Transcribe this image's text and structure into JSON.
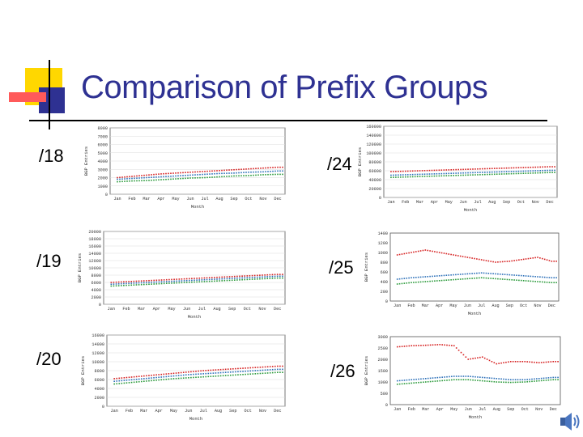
{
  "slide": {
    "title": "Comparison of Prefix Groups",
    "accent_colors": {
      "yellow": "#ffd700",
      "blue": "#2e3192",
      "red": "#ff3b3b",
      "rule": "#000000"
    }
  },
  "panels": [
    {
      "label": "/18",
      "chart_data": {
        "type": "scatter",
        "xlabel": "Month",
        "ylabel": "BGP Entries",
        "yticks": [
          "8000",
          "7000",
          "6000",
          "5000",
          "4000",
          "3000",
          "2000",
          "1000",
          "0"
        ],
        "xticks": [
          "Jan",
          "Feb",
          "Mar",
          "Apr",
          "May",
          "Jun",
          "Jul",
          "Aug",
          "Sep",
          "Oct",
          "Nov",
          "Dec"
        ],
        "ylim": [
          0,
          8000
        ],
        "grid": true,
        "legend": "none",
        "series": [
          {
            "color": "#d62020",
            "x": [
              1,
              2,
              3,
              4,
              5,
              6,
              7,
              8,
              9,
              10,
              11,
              12
            ],
            "y": [
              2000,
              2150,
              2300,
              2450,
              2550,
              2650,
              2750,
              2850,
              2950,
              3050,
              3150,
              3250
            ]
          },
          {
            "color": "#2b6fb8",
            "x": [
              1,
              2,
              3,
              4,
              5,
              6,
              7,
              8,
              9,
              10,
              11,
              12
            ],
            "y": [
              1800,
              1900,
              2000,
              2100,
              2200,
              2300,
              2400,
              2500,
              2550,
              2650,
              2700,
              2800
            ]
          },
          {
            "color": "#2a9a3a",
            "x": [
              1,
              2,
              3,
              4,
              5,
              6,
              7,
              8,
              9,
              10,
              11,
              12
            ],
            "y": [
              1500,
              1600,
              1650,
              1750,
              1850,
              1950,
              2000,
              2100,
              2200,
              2250,
              2350,
              2400
            ]
          }
        ]
      }
    },
    {
      "label": "/24",
      "chart_data": {
        "type": "scatter",
        "xlabel": "Month",
        "ylabel": "BGP Entries",
        "yticks": [
          "160000",
          "140000",
          "120000",
          "100000",
          "80000",
          "60000",
          "40000",
          "20000",
          "0"
        ],
        "xticks": [
          "Jan",
          "Feb",
          "Mar",
          "Apr",
          "May",
          "Jun",
          "Jul",
          "Aug",
          "Sep",
          "Oct",
          "Nov",
          "Dec"
        ],
        "ylim": [
          0,
          160000
        ],
        "grid": true,
        "legend": "none",
        "series": [
          {
            "color": "#d62020",
            "x": [
              1,
              2,
              3,
              4,
              5,
              6,
              7,
              8,
              9,
              10,
              11,
              12
            ],
            "y": [
              58000,
              59000,
              60000,
              61000,
              62000,
              63000,
              64000,
              65000,
              66000,
              67000,
              68000,
              69000
            ]
          },
          {
            "color": "#2b6fb8",
            "x": [
              1,
              2,
              3,
              4,
              5,
              6,
              7,
              8,
              9,
              10,
              11,
              12
            ],
            "y": [
              50000,
              51000,
              52000,
              53000,
              54000,
              55000,
              56000,
              57000,
              58000,
              59000,
              60000,
              61000
            ]
          },
          {
            "color": "#2a9a3a",
            "x": [
              1,
              2,
              3,
              4,
              5,
              6,
              7,
              8,
              9,
              10,
              11,
              12
            ],
            "y": [
              45000,
              46000,
              47000,
              48000,
              49000,
              50000,
              51000,
              52000,
              53000,
              54000,
              55000,
              56000
            ]
          }
        ]
      }
    },
    {
      "label": "/19",
      "chart_data": {
        "type": "scatter",
        "xlabel": "Month",
        "ylabel": "BGP Entries",
        "yticks": [
          "20000",
          "18000",
          "16000",
          "14000",
          "12000",
          "10000",
          "8000",
          "6000",
          "4000",
          "2000",
          "0"
        ],
        "xticks": [
          "Jan",
          "Feb",
          "Mar",
          "Apr",
          "May",
          "Jun",
          "Jul",
          "Aug",
          "Sep",
          "Oct",
          "Nov",
          "Dec"
        ],
        "ylim": [
          0,
          20000
        ],
        "grid": true,
        "legend": "none",
        "series": [
          {
            "color": "#d62020",
            "x": [
              1,
              2,
              3,
              4,
              5,
              6,
              7,
              8,
              9,
              10,
              11,
              12
            ],
            "y": [
              6000,
              6200,
              6400,
              6600,
              6800,
              7000,
              7200,
              7400,
              7600,
              7800,
              8000,
              8200
            ]
          },
          {
            "color": "#2b6fb8",
            "x": [
              1,
              2,
              3,
              4,
              5,
              6,
              7,
              8,
              9,
              10,
              11,
              12
            ],
            "y": [
              5500,
              5700,
              5900,
              6100,
              6300,
              6500,
              6700,
              6900,
              7100,
              7300,
              7500,
              7700
            ]
          },
          {
            "color": "#2a9a3a",
            "x": [
              1,
              2,
              3,
              4,
              5,
              6,
              7,
              8,
              9,
              10,
              11,
              12
            ],
            "y": [
              5000,
              5200,
              5400,
              5600,
              5800,
              6000,
              6200,
              6400,
              6600,
              6800,
              7000,
              7200
            ]
          }
        ]
      }
    },
    {
      "label": "/25",
      "chart_data": {
        "type": "scatter",
        "xlabel": "Month",
        "ylabel": "BGP Entries",
        "yticks": [
          "1400",
          "1200",
          "1000",
          "800",
          "600",
          "400",
          "200",
          "0"
        ],
        "xticks": [
          "Jan",
          "Feb",
          "Mar",
          "Apr",
          "May",
          "Jun",
          "Jul",
          "Aug",
          "Sep",
          "Oct",
          "Nov",
          "Dec"
        ],
        "ylim": [
          0,
          1400
        ],
        "grid": false,
        "legend": "none",
        "series": [
          {
            "color": "#d62020",
            "x": [
              1,
              2,
              3,
              4,
              5,
              6,
              7,
              8,
              9,
              10,
              11,
              12
            ],
            "y": [
              950,
              1000,
              1050,
              1000,
              950,
              900,
              850,
              800,
              820,
              860,
              900,
              820
            ]
          },
          {
            "color": "#2b6fb8",
            "x": [
              1,
              2,
              3,
              4,
              5,
              6,
              7,
              8,
              9,
              10,
              11,
              12
            ],
            "y": [
              450,
              480,
              500,
              520,
              540,
              560,
              580,
              560,
              540,
              520,
              500,
              480
            ]
          },
          {
            "color": "#2a9a3a",
            "x": [
              1,
              2,
              3,
              4,
              5,
              6,
              7,
              8,
              9,
              10,
              11,
              12
            ],
            "y": [
              350,
              380,
              400,
              420,
              440,
              460,
              480,
              460,
              440,
              420,
              400,
              380
            ]
          }
        ]
      }
    },
    {
      "label": "/20",
      "chart_data": {
        "type": "scatter",
        "xlabel": "Month",
        "ylabel": "BGP Entries",
        "yticks": [
          "16000",
          "14000",
          "12000",
          "10000",
          "8000",
          "6000",
          "4000",
          "2000",
          "0"
        ],
        "xticks": [
          "Jan",
          "Feb",
          "Mar",
          "Apr",
          "May",
          "Jun",
          "Jul",
          "Aug",
          "Sep",
          "Oct",
          "Nov",
          "Dec"
        ],
        "ylim": [
          0,
          16000
        ],
        "grid": true,
        "legend": "none",
        "series": [
          {
            "color": "#d62020",
            "x": [
              1,
              2,
              3,
              4,
              5,
              6,
              7,
              8,
              9,
              10,
              11,
              12
            ],
            "y": [
              6200,
              6500,
              6800,
              7100,
              7400,
              7700,
              8000,
              8200,
              8400,
              8600,
              8800,
              9000
            ]
          },
          {
            "color": "#2b6fb8",
            "x": [
              1,
              2,
              3,
              4,
              5,
              6,
              7,
              8,
              9,
              10,
              11,
              12
            ],
            "y": [
              5600,
              5900,
              6200,
              6500,
              6800,
              7100,
              7300,
              7500,
              7700,
              7900,
              8100,
              8300
            ]
          },
          {
            "color": "#2a9a3a",
            "x": [
              1,
              2,
              3,
              4,
              5,
              6,
              7,
              8,
              9,
              10,
              11,
              12
            ],
            "y": [
              5000,
              5300,
              5600,
              5900,
              6200,
              6400,
              6600,
              6800,
              7000,
              7200,
              7400,
              7600
            ]
          }
        ]
      }
    },
    {
      "label": "/26",
      "chart_data": {
        "type": "scatter",
        "xlabel": "Month",
        "ylabel": "BGP Entries",
        "yticks": [
          "3000",
          "2500",
          "2000",
          "1500",
          "1000",
          "500",
          "0"
        ],
        "xticks": [
          "Jan",
          "Feb",
          "Mar",
          "Apr",
          "May",
          "Jun",
          "Jul",
          "Aug",
          "Sep",
          "Oct",
          "Nov",
          "Dec"
        ],
        "ylim": [
          0,
          3000
        ],
        "grid": false,
        "legend": "none",
        "series": [
          {
            "color": "#d62020",
            "x": [
              1,
              2,
              3,
              4,
              5,
              6,
              7,
              8,
              9,
              10,
              11,
              12
            ],
            "y": [
              2550,
              2600,
              2620,
              2650,
              2600,
              2000,
              2100,
              1800,
              1900,
              1900,
              1850,
              1900
            ]
          },
          {
            "color": "#2b6fb8",
            "x": [
              1,
              2,
              3,
              4,
              5,
              6,
              7,
              8,
              9,
              10,
              11,
              12
            ],
            "y": [
              1050,
              1100,
              1150,
              1200,
              1250,
              1250,
              1200,
              1150,
              1100,
              1100,
              1150,
              1200
            ]
          },
          {
            "color": "#2a9a3a",
            "x": [
              1,
              2,
              3,
              4,
              5,
              6,
              7,
              8,
              9,
              10,
              11,
              12
            ],
            "y": [
              900,
              950,
              1000,
              1050,
              1100,
              1100,
              1050,
              1000,
              980,
              1000,
              1050,
              1100
            ]
          }
        ]
      }
    }
  ]
}
